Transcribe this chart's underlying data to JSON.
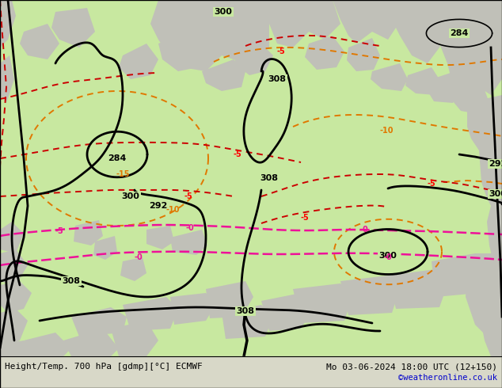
{
  "title_left": "Height/Temp. 700 hPa [gdmp][°C] ECMWF",
  "title_right": "Mo 03-06-2024 18:00 UTC (12+150)",
  "credit": "©weatheronline.co.uk",
  "bg_map": "#c8e8a0",
  "bg_bottom": "#d8d8c8",
  "land_color": "#c0c0b8",
  "credit_color": "#0000cc"
}
